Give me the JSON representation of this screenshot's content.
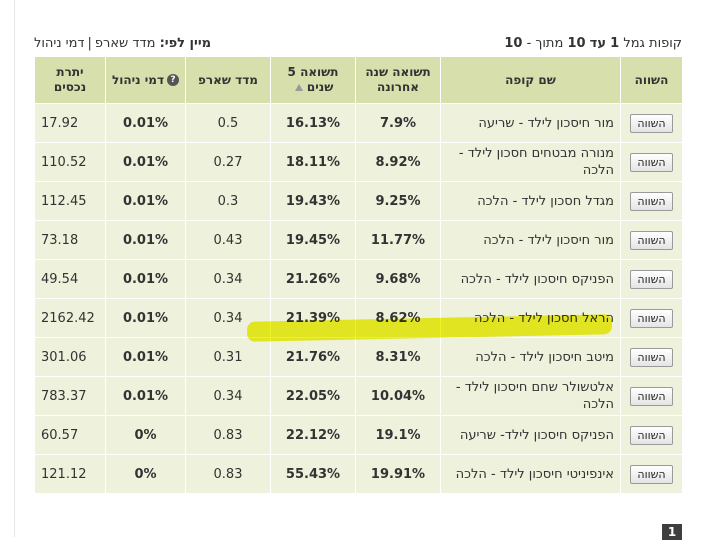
{
  "header": {
    "count_prefix": "קופות גמל",
    "count_from": "1",
    "count_to_word": "עד",
    "count_to": "10",
    "count_of_word": "מתוך -",
    "count_total": "10",
    "sort_label": "מיין לפי:",
    "sort_option_1": "מדד שארפ",
    "sort_sep": "|",
    "sort_option_2": "דמי ניהול"
  },
  "columns": {
    "compare": "השווה",
    "fund_name": "שם קופה",
    "last_year": "תשואה שנה אחרונה",
    "five_years": "תשואה 5 שנים",
    "sharpe": "מדד שארפ",
    "fee": "דמי ניהול",
    "assets": "יתרת נכסים"
  },
  "compare_button_label": "השווה",
  "rows": [
    {
      "name": "מור חיסכון לילד - שריעה",
      "last_year": "7.9%",
      "five_years": "16.13%",
      "sharpe": "0.5",
      "fee": "0.01%",
      "assets": "17.92"
    },
    {
      "name": "מנורה מבטחים חסכון לילד - הלכה",
      "last_year": "8.92%",
      "five_years": "18.11%",
      "sharpe": "0.27",
      "fee": "0.01%",
      "assets": "110.52"
    },
    {
      "name": "מגדל חסכון לילד - הלכה",
      "last_year": "9.25%",
      "five_years": "19.43%",
      "sharpe": "0.3",
      "fee": "0.01%",
      "assets": "112.45"
    },
    {
      "name": "מור חיסכון לילד - הלכה",
      "last_year": "11.77%",
      "five_years": "19.45%",
      "sharpe": "0.43",
      "fee": "0.01%",
      "assets": "73.18"
    },
    {
      "name": "הפניקס חיסכון לילד - הלכה",
      "last_year": "9.68%",
      "five_years": "21.26%",
      "sharpe": "0.34",
      "fee": "0.01%",
      "assets": "49.54"
    },
    {
      "name": "הראל חסכון לילד - הלכה",
      "last_year": "8.62%",
      "five_years": "21.39%",
      "sharpe": "0.34",
      "fee": "0.01%",
      "assets": "2162.42"
    },
    {
      "name": "מיטב חיסכון לילד - הלכה",
      "last_year": "8.31%",
      "five_years": "21.76%",
      "sharpe": "0.31",
      "fee": "0.01%",
      "assets": "301.06"
    },
    {
      "name": "אלטשולר שחם חיסכון לילד - הלכה",
      "last_year": "10.04%",
      "five_years": "22.05%",
      "sharpe": "0.34",
      "fee": "0.01%",
      "assets": "783.37"
    },
    {
      "name": "הפניקס חיסכון לילד- שריעה",
      "last_year": "19.1%",
      "five_years": "22.12%",
      "sharpe": "0.83",
      "fee": "0%",
      "assets": "60.57"
    },
    {
      "name": "אינפיניטי חיסכון לילד - הלכה",
      "last_year": "19.91%",
      "five_years": "55.43%",
      "sharpe": "0.83",
      "fee": "0%",
      "assets": "121.12"
    }
  ],
  "pagination": {
    "current_page": "1"
  },
  "colors": {
    "header_bg": "#d7dfad",
    "row_bg": "#eef1dc",
    "gain_green": "#1f6b2a",
    "highlight": "#eef000"
  }
}
